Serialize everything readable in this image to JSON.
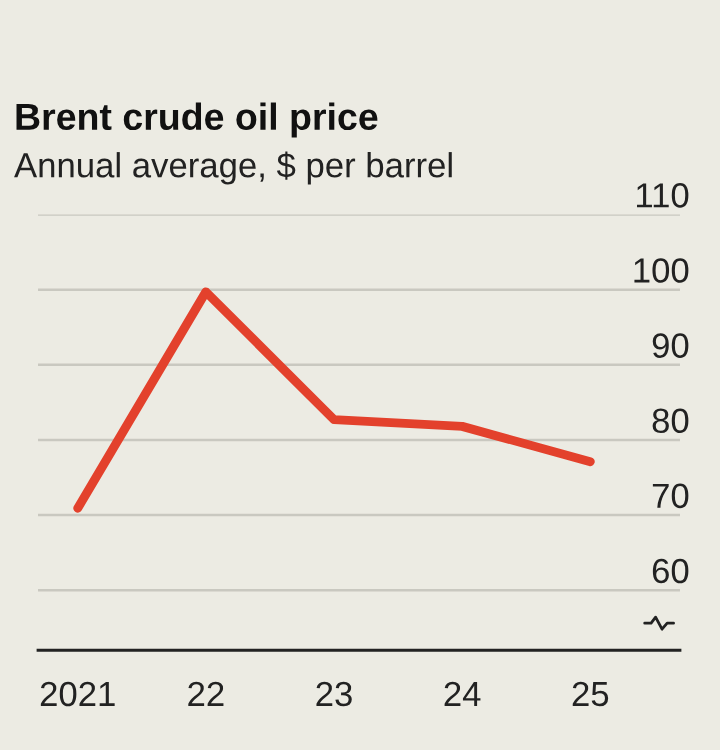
{
  "chart_data": {
    "type": "line",
    "title": "Brent crude oil price",
    "subtitle": "Annual average, $ per barrel",
    "categories": [
      "2021",
      "22",
      "23",
      "24",
      "25"
    ],
    "series": [
      {
        "color": "#e3412c",
        "values": [
          70.9,
          99.7,
          82.7,
          81.8,
          77.1
        ]
      }
    ],
    "ylim": [
      52,
      110
    ],
    "yticks": [
      60,
      70,
      80,
      90,
      100,
      110
    ],
    "grid": "y",
    "marker": "none",
    "line_style": "solid"
  }
}
